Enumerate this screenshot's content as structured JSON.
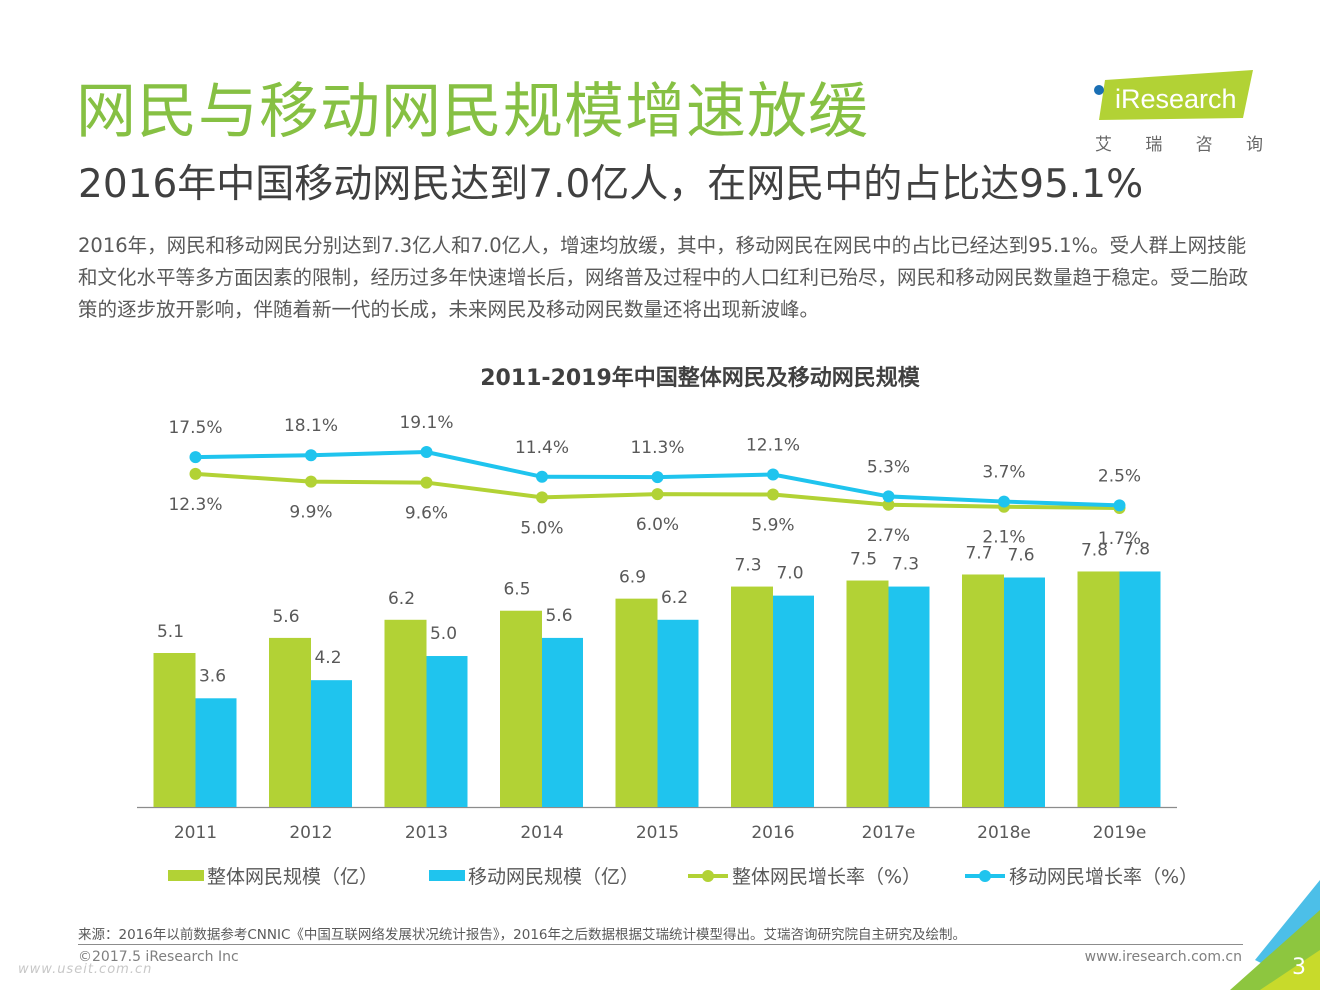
{
  "header": {
    "title": "网民与移动网民规模增速放缓",
    "subtitle": "2016年中国移动网民达到7.0亿人，在网民中的占比达95.1%",
    "body": "2016年，网民和移动网民分别达到7.3亿人和7.0亿人，增速均放缓，其中，移动网民在网民中的占比已经达到95.1%。受人群上网技能和文化水平等多方面因素的限制，经历过多年快速增长后，网络普及过程中的人口红利已殆尽，网民和移动网民数量趋于稳定。受二胎政策的逐步放开影响，伴随着新一代的长成，未来网民及移动网民数量还将出现新波峰。"
  },
  "logo": {
    "brand": "iResearch",
    "cn_chars": [
      "艾",
      "瑞",
      "咨",
      "询"
    ]
  },
  "colors": {
    "green": "#b2d235",
    "blue": "#1fc4ee",
    "title_green": "#86c043",
    "text": "#595959"
  },
  "chart_data": {
    "type": "bar",
    "title": "2011-2019年中国整体网民及移动网民规模",
    "xlabel": "",
    "ylabel": "",
    "categories": [
      "2011",
      "2012",
      "2013",
      "2014",
      "2015",
      "2016",
      "2017e",
      "2018e",
      "2019e"
    ],
    "series": [
      {
        "name": "整体网民规模（亿）",
        "kind": "bar",
        "color": "#b2d235",
        "values": [
          5.1,
          5.6,
          6.2,
          6.5,
          6.9,
          7.3,
          7.5,
          7.7,
          7.8
        ]
      },
      {
        "name": "移动网民规模（亿）",
        "kind": "bar",
        "color": "#1fc4ee",
        "values": [
          3.6,
          4.2,
          5.0,
          5.6,
          6.2,
          7.0,
          7.3,
          7.6,
          7.8
        ]
      },
      {
        "name": "整体网民增长率（%）",
        "kind": "line",
        "color": "#b2d235",
        "values": [
          12.3,
          9.9,
          9.6,
          5.0,
          6.0,
          5.9,
          2.7,
          2.1,
          1.7
        ]
      },
      {
        "name": "移动网民增长率（%）",
        "kind": "line",
        "color": "#1fc4ee",
        "values": [
          17.5,
          18.1,
          19.1,
          11.4,
          11.3,
          12.1,
          5.3,
          3.7,
          2.5
        ]
      }
    ],
    "bar_ylim": [
      0,
      11
    ],
    "line_ylim": [
      0,
      20
    ],
    "grid": false,
    "legend_position": "bottom"
  },
  "footer": {
    "source": "来源：2016年以前数据参考CNNIC《中国互联网络发展状况统计报告》，2016年之后数据根据艾瑞统计模型得出。艾瑞咨询研究院自主研究及绘制。",
    "copyright": "©2017.5 iResearch Inc",
    "website": "www.iresearch.com.cn",
    "page_number": "3",
    "watermark": "www.useit.com.cn"
  }
}
